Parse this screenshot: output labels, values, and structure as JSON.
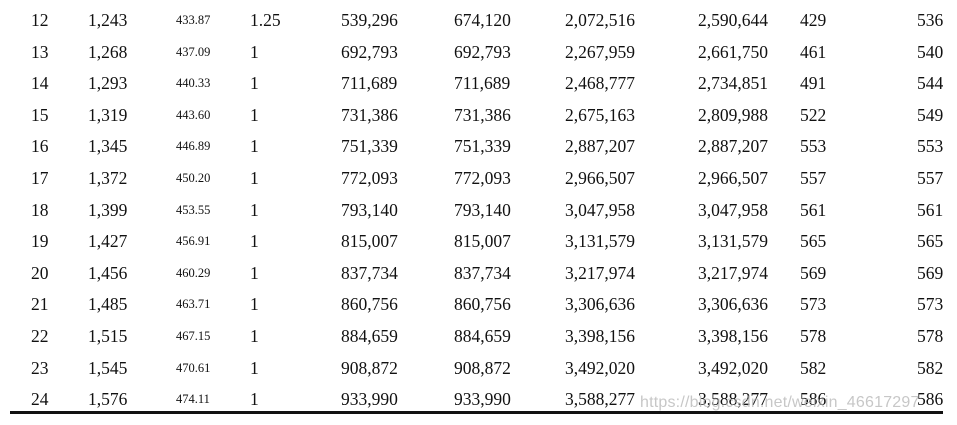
{
  "table": {
    "rows": [
      [
        "12",
        "1,243",
        "433.87",
        "1.25",
        "539,296",
        "674,120",
        "2,072,516",
        "2,590,644",
        "429",
        "536"
      ],
      [
        "13",
        "1,268",
        "437.09",
        "1",
        "692,793",
        "692,793",
        "2,267,959",
        "2,661,750",
        "461",
        "540"
      ],
      [
        "14",
        "1,293",
        "440.33",
        "1",
        "711,689",
        "711,689",
        "2,468,777",
        "2,734,851",
        "491",
        "544"
      ],
      [
        "15",
        "1,319",
        "443.60",
        "1",
        "731,386",
        "731,386",
        "2,675,163",
        "2,809,988",
        "522",
        "549"
      ],
      [
        "16",
        "1,345",
        "446.89",
        "1",
        "751,339",
        "751,339",
        "2,887,207",
        "2,887,207",
        "553",
        "553"
      ],
      [
        "17",
        "1,372",
        "450.20",
        "1",
        "772,093",
        "772,093",
        "2,966,507",
        "2,966,507",
        "557",
        "557"
      ],
      [
        "18",
        "1,399",
        "453.55",
        "1",
        "793,140",
        "793,140",
        "3,047,958",
        "3,047,958",
        "561",
        "561"
      ],
      [
        "19",
        "1,427",
        "456.91",
        "1",
        "815,007",
        "815,007",
        "3,131,579",
        "3,131,579",
        "565",
        "565"
      ],
      [
        "20",
        "1,456",
        "460.29",
        "1",
        "837,734",
        "837,734",
        "3,217,974",
        "3,217,974",
        "569",
        "569"
      ],
      [
        "21",
        "1,485",
        "463.71",
        "1",
        "860,756",
        "860,756",
        "3,306,636",
        "3,306,636",
        "573",
        "573"
      ],
      [
        "22",
        "1,515",
        "467.15",
        "1",
        "884,659",
        "884,659",
        "3,398,156",
        "3,398,156",
        "578",
        "578"
      ],
      [
        "23",
        "1,545",
        "470.61",
        "1",
        "908,872",
        "908,872",
        "3,492,020",
        "3,492,020",
        "582",
        "582"
      ],
      [
        "24",
        "1,576",
        "474.11",
        "1",
        "933,990",
        "933,990",
        "3,588,277",
        "3,588,277",
        "586",
        "586"
      ]
    ]
  },
  "watermark": {
    "text": "https://blog.csdn.net/weixin_46617297"
  }
}
